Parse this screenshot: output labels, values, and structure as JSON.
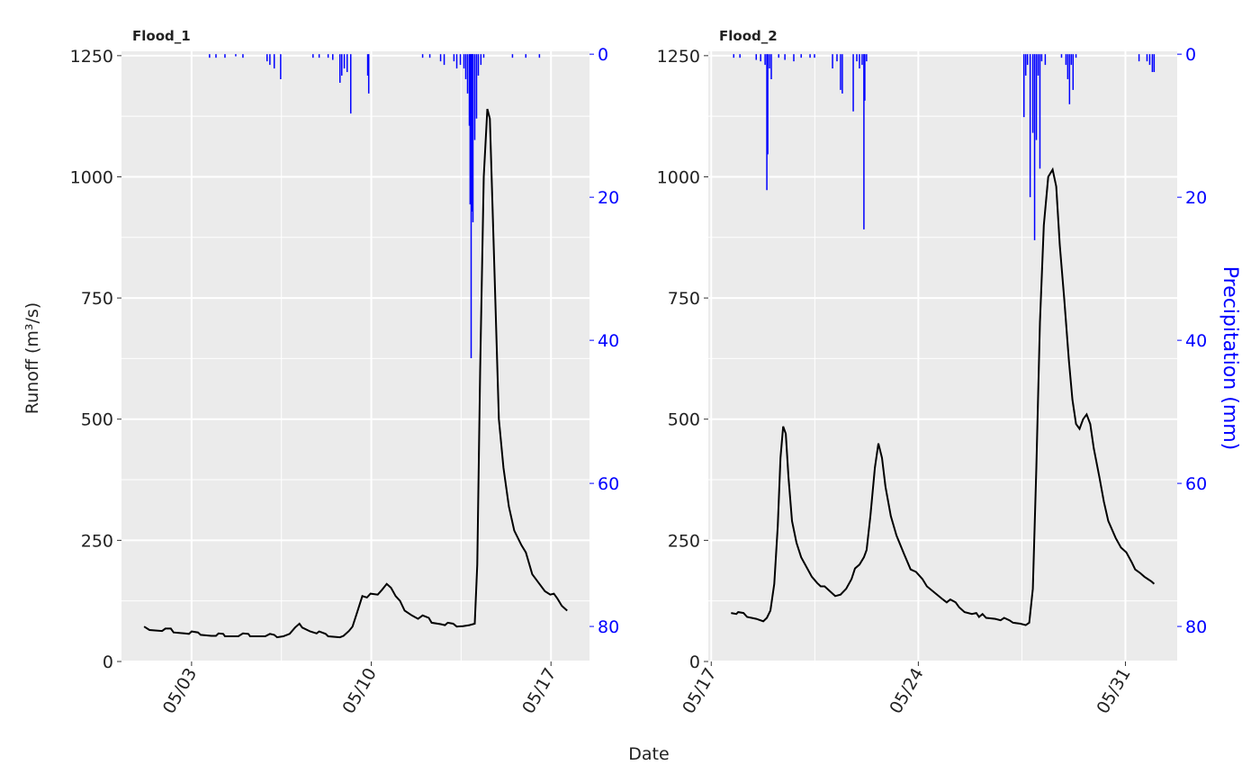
{
  "shared": {
    "x_label": "Date",
    "y_label": "Runoff (m³/s)",
    "y2_label": "Precipitation (mm)"
  },
  "chart_data": [
    {
      "type": "line",
      "title": "Flood_1",
      "xlim": [
        0.27,
        18.5
      ],
      "xticks": [
        {
          "value": 3,
          "label": "05/03"
        },
        {
          "value": 10,
          "label": "05/10"
        },
        {
          "value": 17,
          "label": "05/17"
        }
      ],
      "ylim": [
        0,
        1259
      ],
      "yticks": [
        0,
        250,
        500,
        750,
        1000,
        1250
      ],
      "y2lim": [
        84.9,
        -0.4
      ],
      "y2ticks": [
        0,
        20,
        40,
        60,
        80
      ],
      "grid": true,
      "minor_grid": true,
      "y2_color": "blue",
      "series": [
        {
          "color": "black",
          "x": [
            1.15,
            1.36,
            1.85,
            1.98,
            2.19,
            2.3,
            2.72,
            2.9,
            3.0,
            3.25,
            3.35,
            3.77,
            3.95,
            4.05,
            4.23,
            4.3,
            4.82,
            5.0,
            5.21,
            5.28,
            5.87,
            6.05,
            6.22,
            6.33,
            6.57,
            6.82,
            7.03,
            7.2,
            7.31,
            7.62,
            7.87,
            7.97,
            8.22,
            8.32,
            8.78,
            8.92,
            9.13,
            9.27,
            9.44,
            9.65,
            9.83,
            9.97,
            10.25,
            10.42,
            10.6,
            10.77,
            10.95,
            11.12,
            11.3,
            11.58,
            11.82,
            12.0,
            12.24,
            12.35,
            12.7,
            12.87,
            12.98,
            13.19,
            13.33,
            13.57,
            13.82,
            14.03,
            14.13,
            14.24,
            14.38,
            14.52,
            14.62,
            14.8,
            14.97,
            15.15,
            15.36,
            15.57,
            15.85,
            16.02,
            16.27,
            16.55,
            16.76,
            16.97,
            17.11,
            17.25,
            17.42,
            17.63
          ],
          "values": [
            72,
            65,
            63,
            68,
            68,
            60,
            58,
            57,
            62,
            60,
            55,
            53,
            53,
            58,
            57,
            52,
            52,
            58,
            57,
            52,
            52,
            57,
            55,
            50,
            52,
            57,
            70,
            78,
            70,
            62,
            58,
            62,
            57,
            52,
            50,
            53,
            63,
            72,
            100,
            135,
            132,
            140,
            138,
            148,
            160,
            152,
            135,
            125,
            105,
            95,
            88,
            95,
            90,
            80,
            77,
            75,
            80,
            78,
            72,
            73,
            75,
            78,
            200,
            600,
            1000,
            1140,
            1120,
            800,
            500,
            400,
            320,
            270,
            240,
            225,
            180,
            160,
            145,
            138,
            140,
            130,
            115,
            105
          ]
        },
        {
          "type": "bar",
          "axis": "y2",
          "color": "blue",
          "x": [
            3.7,
            3.95,
            4.3,
            4.72,
            5.0,
            5.94,
            6.05,
            6.22,
            6.47,
            7.73,
            7.97,
            8.32,
            8.5,
            8.78,
            8.85,
            8.95,
            9.06,
            9.2,
            9.86,
            9.9,
            12.0,
            12.28,
            12.7,
            12.84,
            13.22,
            13.33,
            13.47,
            13.61,
            13.68,
            13.75,
            13.82,
            13.85,
            13.89,
            13.92,
            13.96,
            14.03,
            14.1,
            14.17,
            14.27,
            14.38,
            15.5,
            16.02,
            16.55
          ],
          "values": [
            0.5,
            0.5,
            0.5,
            0.3,
            0.5,
            1,
            1.5,
            2,
            3.5,
            0.5,
            0.5,
            0.5,
            0.8,
            4,
            3,
            2,
            2.5,
            8.3,
            3,
            5.5,
            0.5,
            0.5,
            1,
            1.5,
            1,
            2,
            1.5,
            2,
            3.5,
            5.5,
            10,
            21,
            42.5,
            22,
            23.5,
            12,
            9,
            3,
            1.5,
            0.5,
            0.5,
            0.5,
            0.5
          ]
        }
      ]
    },
    {
      "type": "line",
      "title": "Flood_2",
      "xlim": [
        16.9,
        32.75
      ],
      "xticks": [
        {
          "value": 17,
          "label": "05/17"
        },
        {
          "value": 24,
          "label": "05/24"
        },
        {
          "value": 31,
          "label": "05/31"
        }
      ],
      "ylim": [
        0,
        1259
      ],
      "yticks": [
        0,
        250,
        500,
        750,
        1000,
        1250
      ],
      "y2lim": [
        84.9,
        -0.4
      ],
      "y2ticks": [
        0,
        20,
        40,
        60,
        80
      ],
      "grid": true,
      "minor_grid": true,
      "y2_color": "blue",
      "series": [
        {
          "color": "black",
          "x": [
            17.67,
            17.85,
            17.91,
            18.09,
            18.21,
            18.52,
            18.76,
            18.88,
            19.0,
            19.13,
            19.25,
            19.34,
            19.43,
            19.52,
            19.61,
            19.73,
            19.88,
            20.04,
            20.22,
            20.4,
            20.58,
            20.7,
            20.83,
            21.01,
            21.19,
            21.37,
            21.56,
            21.74,
            21.86,
            22.01,
            22.16,
            22.25,
            22.38,
            22.53,
            22.65,
            22.77,
            22.89,
            23.07,
            23.26,
            23.53,
            23.74,
            23.92,
            24.14,
            24.29,
            24.59,
            24.83,
            24.96,
            25.08,
            25.26,
            25.38,
            25.56,
            25.81,
            25.96,
            26.05,
            26.17,
            26.29,
            26.6,
            26.78,
            26.9,
            27.08,
            27.2,
            27.45,
            27.63,
            27.75,
            27.87,
            27.99,
            28.11,
            28.24,
            28.39,
            28.54,
            28.66,
            28.78,
            28.93,
            29.09,
            29.21,
            29.33,
            29.45,
            29.57,
            29.69,
            29.81,
            29.93,
            30.12,
            30.27,
            30.42,
            30.67,
            30.85,
            31.03,
            31.21,
            31.33,
            31.51,
            31.64,
            31.76,
            31.88,
            31.97
          ],
          "values": [
            100,
            98,
            102,
            100,
            92,
            88,
            83,
            90,
            105,
            160,
            280,
            420,
            485,
            470,
            380,
            290,
            245,
            215,
            195,
            175,
            162,
            155,
            155,
            145,
            135,
            138,
            150,
            170,
            192,
            200,
            215,
            230,
            300,
            400,
            450,
            420,
            360,
            300,
            260,
            220,
            190,
            185,
            170,
            155,
            140,
            128,
            122,
            128,
            122,
            112,
            102,
            98,
            100,
            92,
            98,
            90,
            88,
            85,
            90,
            85,
            80,
            78,
            75,
            80,
            150,
            400,
            700,
            900,
            1000,
            1015,
            980,
            860,
            750,
            620,
            540,
            490,
            480,
            500,
            510,
            490,
            440,
            380,
            330,
            290,
            255,
            235,
            225,
            205,
            190,
            182,
            175,
            170,
            165,
            160
          ]
        },
        {
          "type": "bar",
          "axis": "y2",
          "color": "blue",
          "x": [
            17.76,
            17.97,
            18.52,
            18.67,
            18.82,
            18.88,
            18.91,
            18.97,
            19.03,
            19.28,
            19.49,
            19.79,
            20.04,
            20.34,
            20.49,
            21.1,
            21.25,
            21.37,
            21.43,
            21.8,
            21.92,
            22.01,
            22.1,
            22.16,
            22.19,
            22.25,
            27.57,
            27.63,
            27.69,
            27.78,
            27.87,
            27.93,
            27.99,
            28.05,
            28.11,
            28.17,
            28.29,
            28.84,
            28.99,
            29.05,
            29.11,
            29.17,
            29.23,
            29.33,
            31.46,
            31.73,
            31.82,
            31.91,
            31.97
          ],
          "values": [
            0.5,
            0.5,
            0.8,
            1,
            1.5,
            19,
            14,
            2,
            3.5,
            0.5,
            0.8,
            1,
            0.5,
            0.5,
            0.5,
            2,
            1,
            5,
            5.5,
            8,
            1,
            2,
            1.5,
            24.5,
            6.5,
            1,
            8.8,
            3,
            1.5,
            20,
            11,
            26,
            12,
            3,
            16,
            1,
            1.5,
            0.5,
            1.5,
            3.5,
            7,
            1.5,
            5,
            0.5,
            1,
            1,
            1.5,
            2.5,
            2.5
          ]
        }
      ]
    }
  ]
}
